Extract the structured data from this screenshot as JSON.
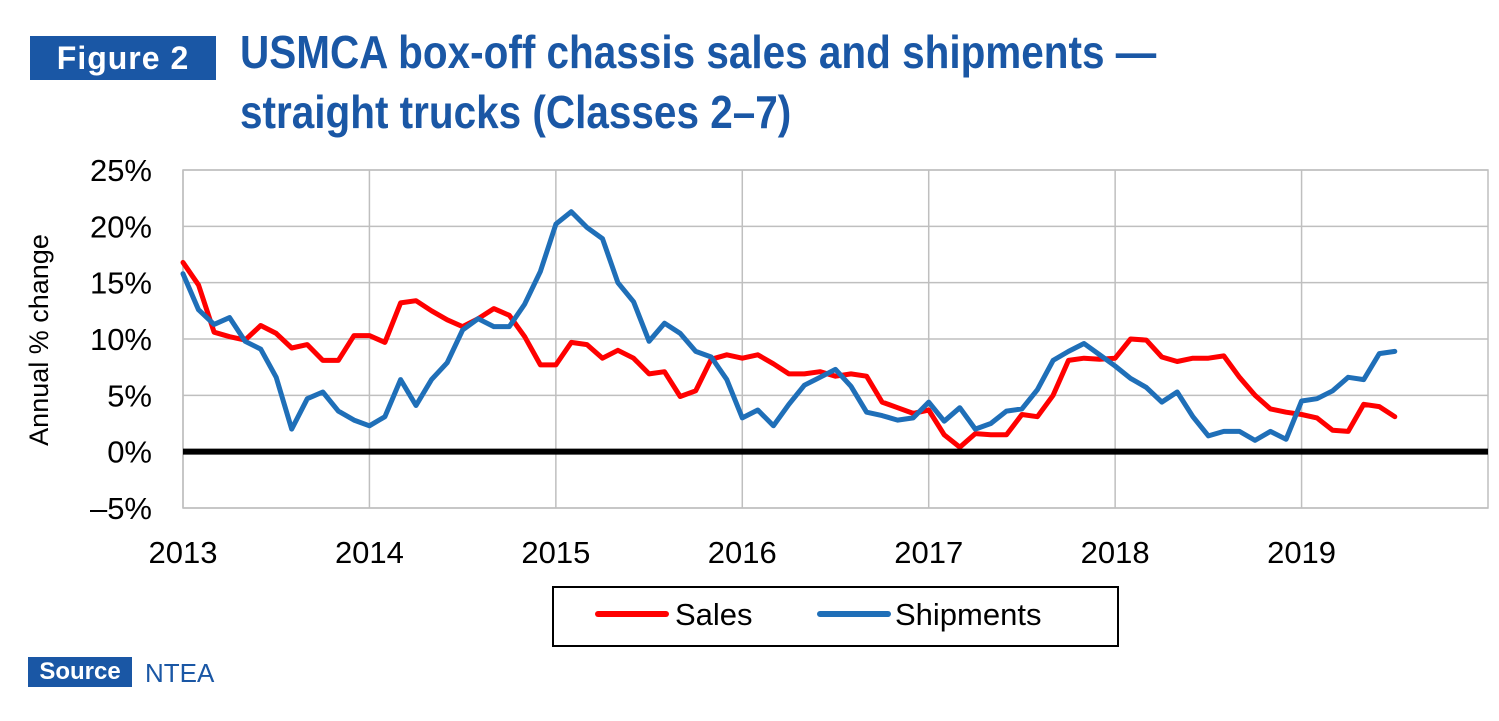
{
  "figure_label": "Figure 2",
  "title_line1": "USMCA box-off chassis sales and shipments —",
  "title_line2": "straight trucks (Classes 2–7)",
  "source_label": "Source",
  "source_value": "NTEA",
  "colors": {
    "brand_blue": "#1a57a5",
    "sales": "#ff0000",
    "shipments": "#1f6fb8",
    "zero_line": "#000000",
    "grid": "#bfbfbf"
  },
  "chart_data": {
    "type": "line",
    "title": "USMCA box-off chassis sales and shipments — straight trucks (Classes 2–7)",
    "xlabel": "",
    "ylabel": "Annual % change",
    "xlim": [
      2013,
      2020
    ],
    "ylim": [
      -5,
      25
    ],
    "x_ticks": [
      2013,
      2014,
      2015,
      2016,
      2017,
      2018,
      2019
    ],
    "x_tick_labels": [
      "2013",
      "2014",
      "2015",
      "2016",
      "2017",
      "2018",
      "2019"
    ],
    "y_ticks": [
      -5,
      0,
      5,
      10,
      15,
      20,
      25
    ],
    "y_tick_labels": [
      "–5%",
      "0%",
      "5%",
      "10%",
      "15%",
      "20%",
      "25%"
    ],
    "grid": true,
    "legend_position": "bottom",
    "x": [
      2013.0,
      2013.083,
      2013.167,
      2013.25,
      2013.333,
      2013.417,
      2013.5,
      2013.583,
      2013.667,
      2013.75,
      2013.833,
      2013.917,
      2014.0,
      2014.083,
      2014.167,
      2014.25,
      2014.333,
      2014.417,
      2014.5,
      2014.583,
      2014.667,
      2014.75,
      2014.833,
      2014.917,
      2015.0,
      2015.083,
      2015.167,
      2015.25,
      2015.333,
      2015.417,
      2015.5,
      2015.583,
      2015.667,
      2015.75,
      2015.833,
      2015.917,
      2016.0,
      2016.083,
      2016.167,
      2016.25,
      2016.333,
      2016.417,
      2016.5,
      2016.583,
      2016.667,
      2016.75,
      2016.833,
      2016.917,
      2017.0,
      2017.083,
      2017.167,
      2017.25,
      2017.333,
      2017.417,
      2017.5,
      2017.583,
      2017.667,
      2017.75,
      2017.833,
      2017.917,
      2018.0,
      2018.083,
      2018.167,
      2018.25,
      2018.333,
      2018.417,
      2018.5,
      2018.583,
      2018.667,
      2018.75,
      2018.833,
      2018.917,
      2019.0,
      2019.083,
      2019.167,
      2019.25,
      2019.333,
      2019.417,
      2019.5
    ],
    "series": [
      {
        "name": "Sales",
        "color": "#ff0000",
        "values": [
          16.8,
          14.8,
          10.6,
          10.2,
          9.9,
          11.2,
          10.5,
          9.2,
          9.5,
          8.1,
          8.1,
          10.3,
          10.3,
          9.7,
          13.2,
          13.4,
          12.5,
          11.7,
          11.1,
          11.8,
          12.7,
          12.1,
          10.2,
          7.7,
          7.7,
          9.7,
          9.5,
          8.3,
          9.0,
          8.3,
          6.9,
          7.1,
          4.9,
          5.4,
          8.2,
          8.6,
          8.3,
          8.6,
          7.8,
          6.9,
          6.9,
          7.1,
          6.7,
          6.9,
          6.7,
          4.4,
          3.9,
          3.4,
          3.7,
          1.5,
          0.4,
          1.6,
          1.5,
          1.5,
          3.3,
          3.1,
          5.0,
          8.1,
          8.3,
          8.2,
          8.3,
          10.0,
          9.9,
          8.4,
          8.0,
          8.3,
          8.3,
          8.5,
          6.6,
          5.0,
          3.8,
          3.5,
          3.3,
          3.0,
          1.9,
          1.8,
          4.2,
          4.0,
          3.1
        ]
      },
      {
        "name": "Shipments",
        "color": "#1f6fb8",
        "values": [
          15.8,
          12.6,
          11.3,
          11.9,
          9.8,
          9.1,
          6.6,
          2.0,
          4.7,
          5.3,
          3.6,
          2.8,
          2.3,
          3.1,
          6.4,
          4.1,
          6.4,
          7.9,
          10.8,
          11.8,
          11.1,
          11.1,
          13.1,
          16.0,
          20.2,
          21.3,
          19.9,
          18.9,
          15.0,
          13.3,
          9.8,
          11.4,
          10.5,
          8.9,
          8.4,
          6.4,
          3.0,
          3.7,
          2.3,
          4.2,
          5.9,
          6.6,
          7.3,
          5.8,
          3.5,
          3.2,
          2.8,
          3.0,
          4.4,
          2.7,
          3.9,
          2.0,
          2.5,
          3.6,
          3.8,
          5.5,
          8.1,
          8.9,
          9.6,
          8.6,
          7.6,
          6.5,
          5.7,
          4.4,
          5.3,
          3.1,
          1.4,
          1.8,
          1.8,
          1.0,
          1.8,
          1.1,
          4.5,
          4.7,
          5.4,
          6.6,
          6.4,
          8.7,
          8.9
        ]
      }
    ]
  }
}
